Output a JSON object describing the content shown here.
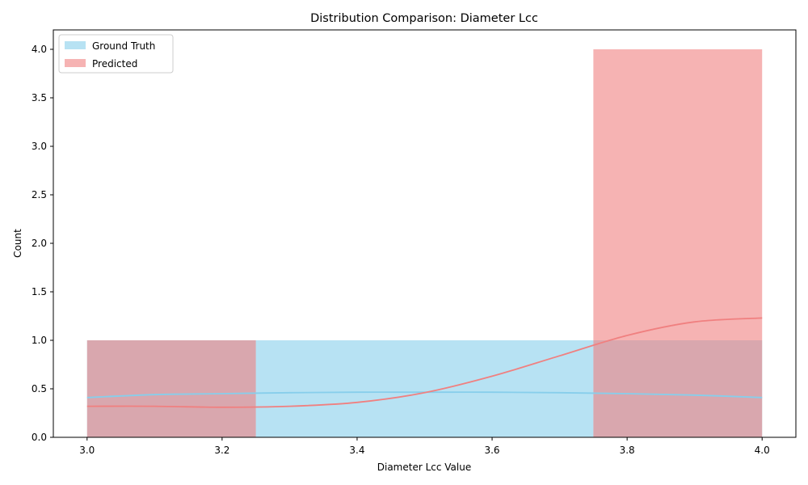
{
  "chart_data": {
    "type": "bar",
    "title": "Distribution Comparison: Diameter Lcc",
    "xlabel": "Diameter Lcc Value",
    "ylabel": "Count",
    "xlim": [
      2.95,
      4.05
    ],
    "ylim": [
      0,
      4.2
    ],
    "xticks": [
      "3.0",
      "3.2",
      "3.4",
      "3.6",
      "3.8",
      "4.0"
    ],
    "yticks": [
      "0.0",
      "0.5",
      "1.0",
      "1.5",
      "2.0",
      "2.5",
      "3.0",
      "3.5",
      "4.0"
    ],
    "grid": false,
    "legend_position": "top-left",
    "series": [
      {
        "name": "Ground Truth",
        "color": "#87ceeb",
        "bins": [
          {
            "x0": 3.0,
            "x1": 3.25,
            "count": 1
          },
          {
            "x0": 3.25,
            "x1": 3.75,
            "count": 1
          },
          {
            "x0": 3.75,
            "x1": 4.0,
            "count": 1
          }
        ],
        "kde": {
          "x": [
            3.0,
            3.1,
            3.2,
            3.3,
            3.4,
            3.5,
            3.6,
            3.7,
            3.8,
            3.9,
            4.0
          ],
          "y": [
            0.41,
            0.44,
            0.45,
            0.46,
            0.465,
            0.465,
            0.465,
            0.46,
            0.45,
            0.435,
            0.41
          ]
        }
      },
      {
        "name": "Predicted",
        "color": "#f08080",
        "bins": [
          {
            "x0": 3.0,
            "x1": 3.25,
            "count": 1
          },
          {
            "x0": 3.75,
            "x1": 4.0,
            "count": 4
          }
        ],
        "kde": {
          "x": [
            3.0,
            3.1,
            3.2,
            3.3,
            3.4,
            3.5,
            3.6,
            3.7,
            3.8,
            3.9,
            4.0
          ],
          "y": [
            0.32,
            0.32,
            0.31,
            0.32,
            0.36,
            0.46,
            0.63,
            0.84,
            1.05,
            1.19,
            1.23
          ]
        }
      }
    ]
  }
}
